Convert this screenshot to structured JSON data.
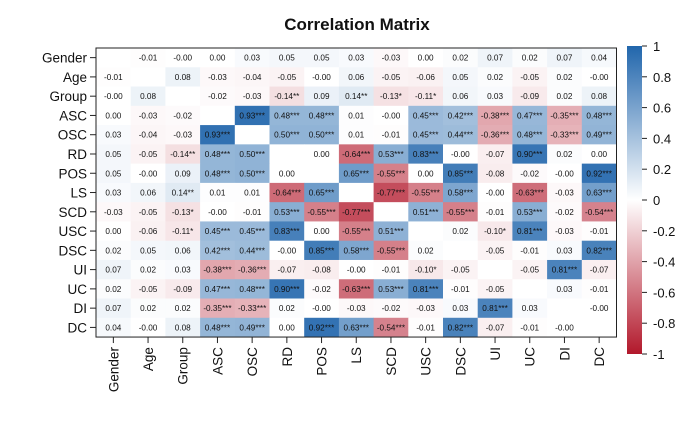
{
  "chart_data": {
    "type": "heatmap",
    "title": "Correlation Matrix",
    "variables": [
      "Gender",
      "Age",
      "Group",
      "ASC",
      "OSC",
      "RD",
      "POS",
      "LS",
      "SCD",
      "USC",
      "DSC",
      "UI",
      "UC",
      "DI",
      "DC"
    ],
    "cells": [
      [
        "",
        "-0.01",
        "-0.00",
        "0.00",
        "0.03",
        "0.05",
        "0.05",
        "0.03",
        "-0.03",
        "0.00",
        "0.02",
        "0.07",
        "0.02",
        "0.07",
        "0.04"
      ],
      [
        "-0.01",
        "",
        "0.08",
        "-0.03",
        "-0.04",
        "-0.05",
        "-0.00",
        "0.06",
        "-0.05",
        "-0.06",
        "0.05",
        "0.02",
        "-0.05",
        "0.02",
        "-0.00"
      ],
      [
        "-0.00",
        "0.08",
        "",
        "-0.02",
        "-0.03",
        "-0.14**",
        "0.09",
        "0.14**",
        "-0.13*",
        "-0.11*",
        "0.06",
        "0.03",
        "-0.09",
        "0.02",
        "0.08"
      ],
      [
        "0.00",
        "-0.03",
        "-0.02",
        "",
        "0.93***",
        "0.48***",
        "0.48***",
        "0.01",
        "-0.00",
        "0.45***",
        "0.42***",
        "-0.38***",
        "0.47***",
        "-0.35***",
        "0.48***"
      ],
      [
        "0.03",
        "-0.04",
        "-0.03",
        "0.93***",
        "",
        "0.50***",
        "0.50***",
        "0.01",
        "-0.01",
        "0.45***",
        "0.44***",
        "-0.36***",
        "0.48***",
        "-0.33***",
        "0.49***"
      ],
      [
        "0.05",
        "-0.05",
        "-0.14**",
        "0.48***",
        "0.50***",
        "",
        "0.00",
        "-0.64***",
        "0.53***",
        "0.83***",
        "-0.00",
        "-0.07",
        "0.90***",
        "0.02",
        "0.00"
      ],
      [
        "0.05",
        "-0.00",
        "0.09",
        "0.48***",
        "0.50***",
        "0.00",
        "",
        "0.65***",
        "-0.55***",
        "0.00",
        "0.85***",
        "-0.08",
        "-0.02",
        "-0.00",
        "0.92***"
      ],
      [
        "0.03",
        "0.06",
        "0.14**",
        "0.01",
        "0.01",
        "-0.64***",
        "0.65***",
        "",
        "-0.77***",
        "-0.55***",
        "0.58***",
        "-0.00",
        "-0.63***",
        "-0.03",
        "0.63***"
      ],
      [
        "-0.03",
        "-0.05",
        "-0.13*",
        "-0.00",
        "-0.01",
        "0.53***",
        "-0.55***",
        "-0.77***",
        "",
        "0.51***",
        "-0.55***",
        "-0.01",
        "0.53***",
        "-0.02",
        "-0.54***"
      ],
      [
        "0.00",
        "-0.06",
        "-0.11*",
        "0.45***",
        "0.45***",
        "0.83***",
        "0.00",
        "-0.55***",
        "0.51***",
        "",
        "0.02",
        "-0.10*",
        "0.81***",
        "-0.03",
        "-0.01"
      ],
      [
        "0.02",
        "0.05",
        "0.06",
        "0.42***",
        "0.44***",
        "-0.00",
        "0.85***",
        "0.58***",
        "-0.55***",
        "0.02",
        "",
        "-0.05",
        "-0.01",
        "0.03",
        "0.82***"
      ],
      [
        "0.07",
        "0.02",
        "0.03",
        "-0.38***",
        "-0.36***",
        "-0.07",
        "-0.08",
        "-0.00",
        "-0.01",
        "-0.10*",
        "-0.05",
        "",
        "-0.05",
        "0.81***",
        "-0.07"
      ],
      [
        "0.02",
        "-0.05",
        "-0.09",
        "0.47***",
        "0.48***",
        "0.90***",
        "-0.02",
        "-0.63***",
        "0.53***",
        "0.81***",
        "-0.01",
        "-0.05",
        "",
        "0.03",
        "-0.01"
      ],
      [
        "0.07",
        "0.02",
        "0.02",
        "-0.35***",
        "-0.33***",
        "0.02",
        "-0.00",
        "-0.03",
        "-0.02",
        "-0.03",
        "0.03",
        "0.81***",
        "0.03",
        "",
        "-0.00"
      ],
      [
        "0.04",
        "-0.00",
        "0.08",
        "0.48***",
        "0.49***",
        "0.00",
        "0.92***",
        "0.63***",
        "-0.54***",
        "-0.01",
        "0.82***",
        "-0.07",
        "-0.01",
        "-0.00",
        ""
      ]
    ],
    "color_scale": {
      "min": -1,
      "max": 1,
      "low_color": "#b2182b",
      "mid_color": "#ffffff",
      "high_color": "#2166ac",
      "ticks": [
        "1",
        "0.8",
        "0.6",
        "0.4",
        "0.2",
        "0",
        "-0.2",
        "-0.4",
        "-0.6",
        "-0.8",
        "-1"
      ]
    },
    "legend": "right"
  }
}
